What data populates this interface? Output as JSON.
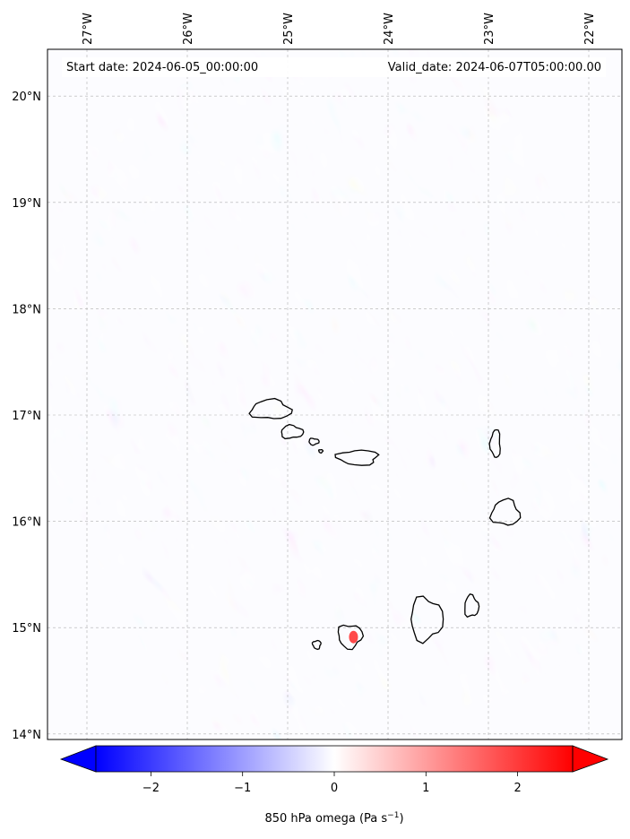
{
  "map": {
    "start_label": "Start date: 2024-06-05_00:00:00",
    "valid_label": "Valid_date: 2024-06-07T05:00:00.00",
    "lon_ticks": [
      {
        "value": -27,
        "label": "27°W"
      },
      {
        "value": -26,
        "label": "26°W"
      },
      {
        "value": -25,
        "label": "25°W"
      },
      {
        "value": -24,
        "label": "24°W"
      },
      {
        "value": -23,
        "label": "23°W"
      },
      {
        "value": -22,
        "label": "22°W"
      }
    ],
    "lat_ticks": [
      {
        "value": 20,
        "label": "20°N"
      },
      {
        "value": 19,
        "label": "19°N"
      },
      {
        "value": 18,
        "label": "18°N"
      },
      {
        "value": 17,
        "label": "17°N"
      },
      {
        "value": 16,
        "label": "16°N"
      },
      {
        "value": 15,
        "label": "15°N"
      },
      {
        "value": 14,
        "label": "14°N"
      }
    ],
    "field": "850 hPa omega",
    "palette": {
      "negative": "#0000ff",
      "zero": "#ffffff",
      "positive": "#ff0000",
      "coast": "#000000",
      "grid": "#b0b0b0"
    },
    "islands": [
      {
        "name": "Santo Antão",
        "lon": -25.17,
        "lat": 17.05,
        "rlon": 0.2,
        "rlat": 0.09
      },
      {
        "name": "São Vicente",
        "lon": -24.96,
        "lat": 16.84,
        "rlon": 0.11,
        "rlat": 0.06
      },
      {
        "name": "Santa Luzia",
        "lon": -24.74,
        "lat": 16.75,
        "rlon": 0.05,
        "rlat": 0.03
      },
      {
        "name": "Branco",
        "lon": -24.67,
        "lat": 16.66,
        "rlon": 0.02,
        "rlat": 0.015
      },
      {
        "name": "São Nicolau",
        "lon": -24.3,
        "lat": 16.6,
        "rlon": 0.2,
        "rlat": 0.07
      },
      {
        "name": "Sal",
        "lon": -22.93,
        "lat": 16.73,
        "rlon": 0.05,
        "rlat": 0.13
      },
      {
        "name": "Boa Vista",
        "lon": -22.83,
        "lat": 16.08,
        "rlon": 0.14,
        "rlat": 0.12
      },
      {
        "name": "Maio",
        "lon": -23.17,
        "lat": 15.2,
        "rlon": 0.07,
        "rlat": 0.1
      },
      {
        "name": "Santiago",
        "lon": -23.62,
        "lat": 15.08,
        "rlon": 0.16,
        "rlat": 0.2
      },
      {
        "name": "Fogo",
        "lon": -24.38,
        "lat": 14.92,
        "rlon": 0.12,
        "rlat": 0.11
      },
      {
        "name": "Brava",
        "lon": -24.71,
        "lat": 14.84,
        "rlon": 0.04,
        "rlat": 0.04
      }
    ]
  },
  "colorbar": {
    "vmin": -2.6,
    "vmax": 2.6,
    "ticks": [
      {
        "value": -2,
        "label": "−2"
      },
      {
        "value": -1,
        "label": "−1"
      },
      {
        "value": 0,
        "label": "0"
      },
      {
        "value": 1,
        "label": "1"
      },
      {
        "value": 2,
        "label": "2"
      }
    ],
    "label_main": "850 hPa omega (Pa s",
    "label_exp": "−1",
    "label_close": ")"
  }
}
